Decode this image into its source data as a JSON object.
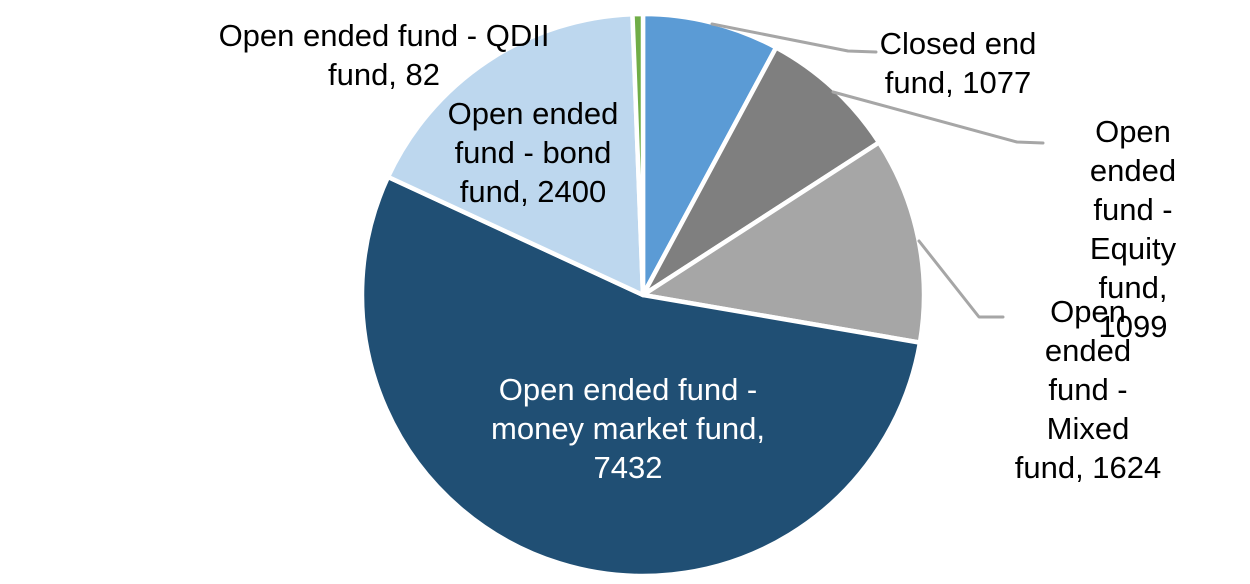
{
  "chart_data": {
    "type": "pie",
    "title": "",
    "legend": "none",
    "background": "#FFFFFF",
    "total": 13714,
    "start_angle_deg": 0,
    "direction": "clockwise",
    "slice_border_color": "#FFFFFF",
    "leader_line_color": "#A6A6A6",
    "label_font_color_outside": "#000000",
    "label_font_color_inside": "#FFFFFF",
    "slices": [
      {
        "id": "closed-end-fund",
        "label": "Closed end fund",
        "value": 1077,
        "color": "#5B9BD5",
        "label_position": "outside",
        "leader_line": true,
        "display": "Closed end\nfund, 1077"
      },
      {
        "id": "equity-fund",
        "label": "Open ended fund - Equity fund",
        "value": 1099,
        "color": "#7F7F7F",
        "label_position": "outside",
        "leader_line": true,
        "display": "Open ended\nfund - Equity\nfund, 1099"
      },
      {
        "id": "mixed-fund",
        "label": "Open ended fund - Mixed fund",
        "value": 1624,
        "color": "#A6A6A6",
        "label_position": "outside",
        "leader_line": true,
        "display": "Open ended\nfund - Mixed\nfund, 1624"
      },
      {
        "id": "money-market-fund",
        "label": "Open ended fund - money market fund",
        "value": 7432,
        "color": "#204F74",
        "label_position": "inside",
        "leader_line": false,
        "display": "Open ended fund -\nmoney market fund,\n7432"
      },
      {
        "id": "bond-fund",
        "label": "Open ended fund - bond fund",
        "value": 2400,
        "color": "#BDD7EE",
        "label_position": "outside",
        "leader_line": false,
        "display": "Open ended\nfund - bond\nfund, 2400"
      },
      {
        "id": "qdii-fund",
        "label": "Open ended fund - QDII fund",
        "value": 82,
        "color": "#70AD47",
        "label_position": "outside",
        "leader_line": false,
        "display": "Open ended fund - QDII\nfund, 82"
      }
    ]
  }
}
